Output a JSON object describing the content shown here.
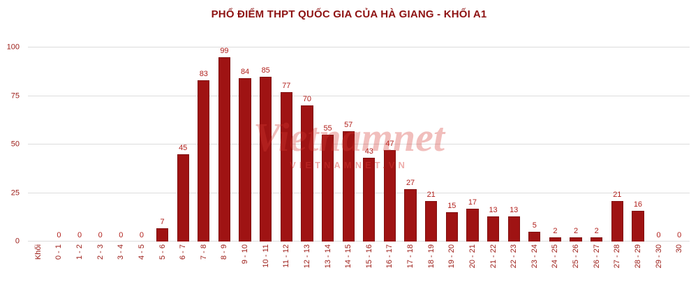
{
  "title": "PHỔ ĐIỂM THPT QUỐC GIA CỦA HÀ GIANG - KHỐI A1",
  "watermark": {
    "line1": "Vietnamnet",
    "line2": "VIETNAMNET.VN"
  },
  "chart_data": {
    "type": "bar",
    "title": "PHỔ ĐIỂM THPT QUỐC GIA CỦA HÀ GIANG - KHỐI A1",
    "categories": [
      "Khối",
      "0 - 1",
      "1 - 2",
      "2 - 3",
      "3 - 4",
      "4 - 5",
      "5 - 6",
      "6 - 7",
      "7 - 8",
      "8 - 9",
      "9 - 10",
      "10 - 11",
      "11 - 12",
      "12 - 13",
      "13 - 14",
      "14 - 15",
      "15 - 16",
      "16 - 17",
      "17 - 18",
      "18 - 19",
      "19 - 20",
      "20 - 21",
      "21 - 22",
      "22 - 23",
      "23 - 24",
      "24 - 25",
      "25 - 26",
      "26 - 27",
      "27 - 28",
      "28 - 29",
      "29 - 30",
      "30"
    ],
    "values": [
      null,
      0,
      0,
      0,
      0,
      0,
      7,
      45,
      83,
      99,
      84,
      85,
      77,
      70,
      55,
      57,
      43,
      47,
      27,
      21,
      15,
      17,
      13,
      13,
      5,
      2,
      2,
      2,
      21,
      16,
      0,
      0
    ],
    "y_ticks": [
      0,
      25,
      50,
      75,
      100
    ],
    "ylim": [
      0,
      100
    ],
    "xlabel": "",
    "ylabel": "",
    "grid": true,
    "legend_position": "none",
    "bar_color": "#9f1313",
    "bar_border_color": "#7f0e0e",
    "value_label_color": "#b1201c",
    "tick_label_color": "#9b1b16",
    "title_color": "#8e1212"
  }
}
